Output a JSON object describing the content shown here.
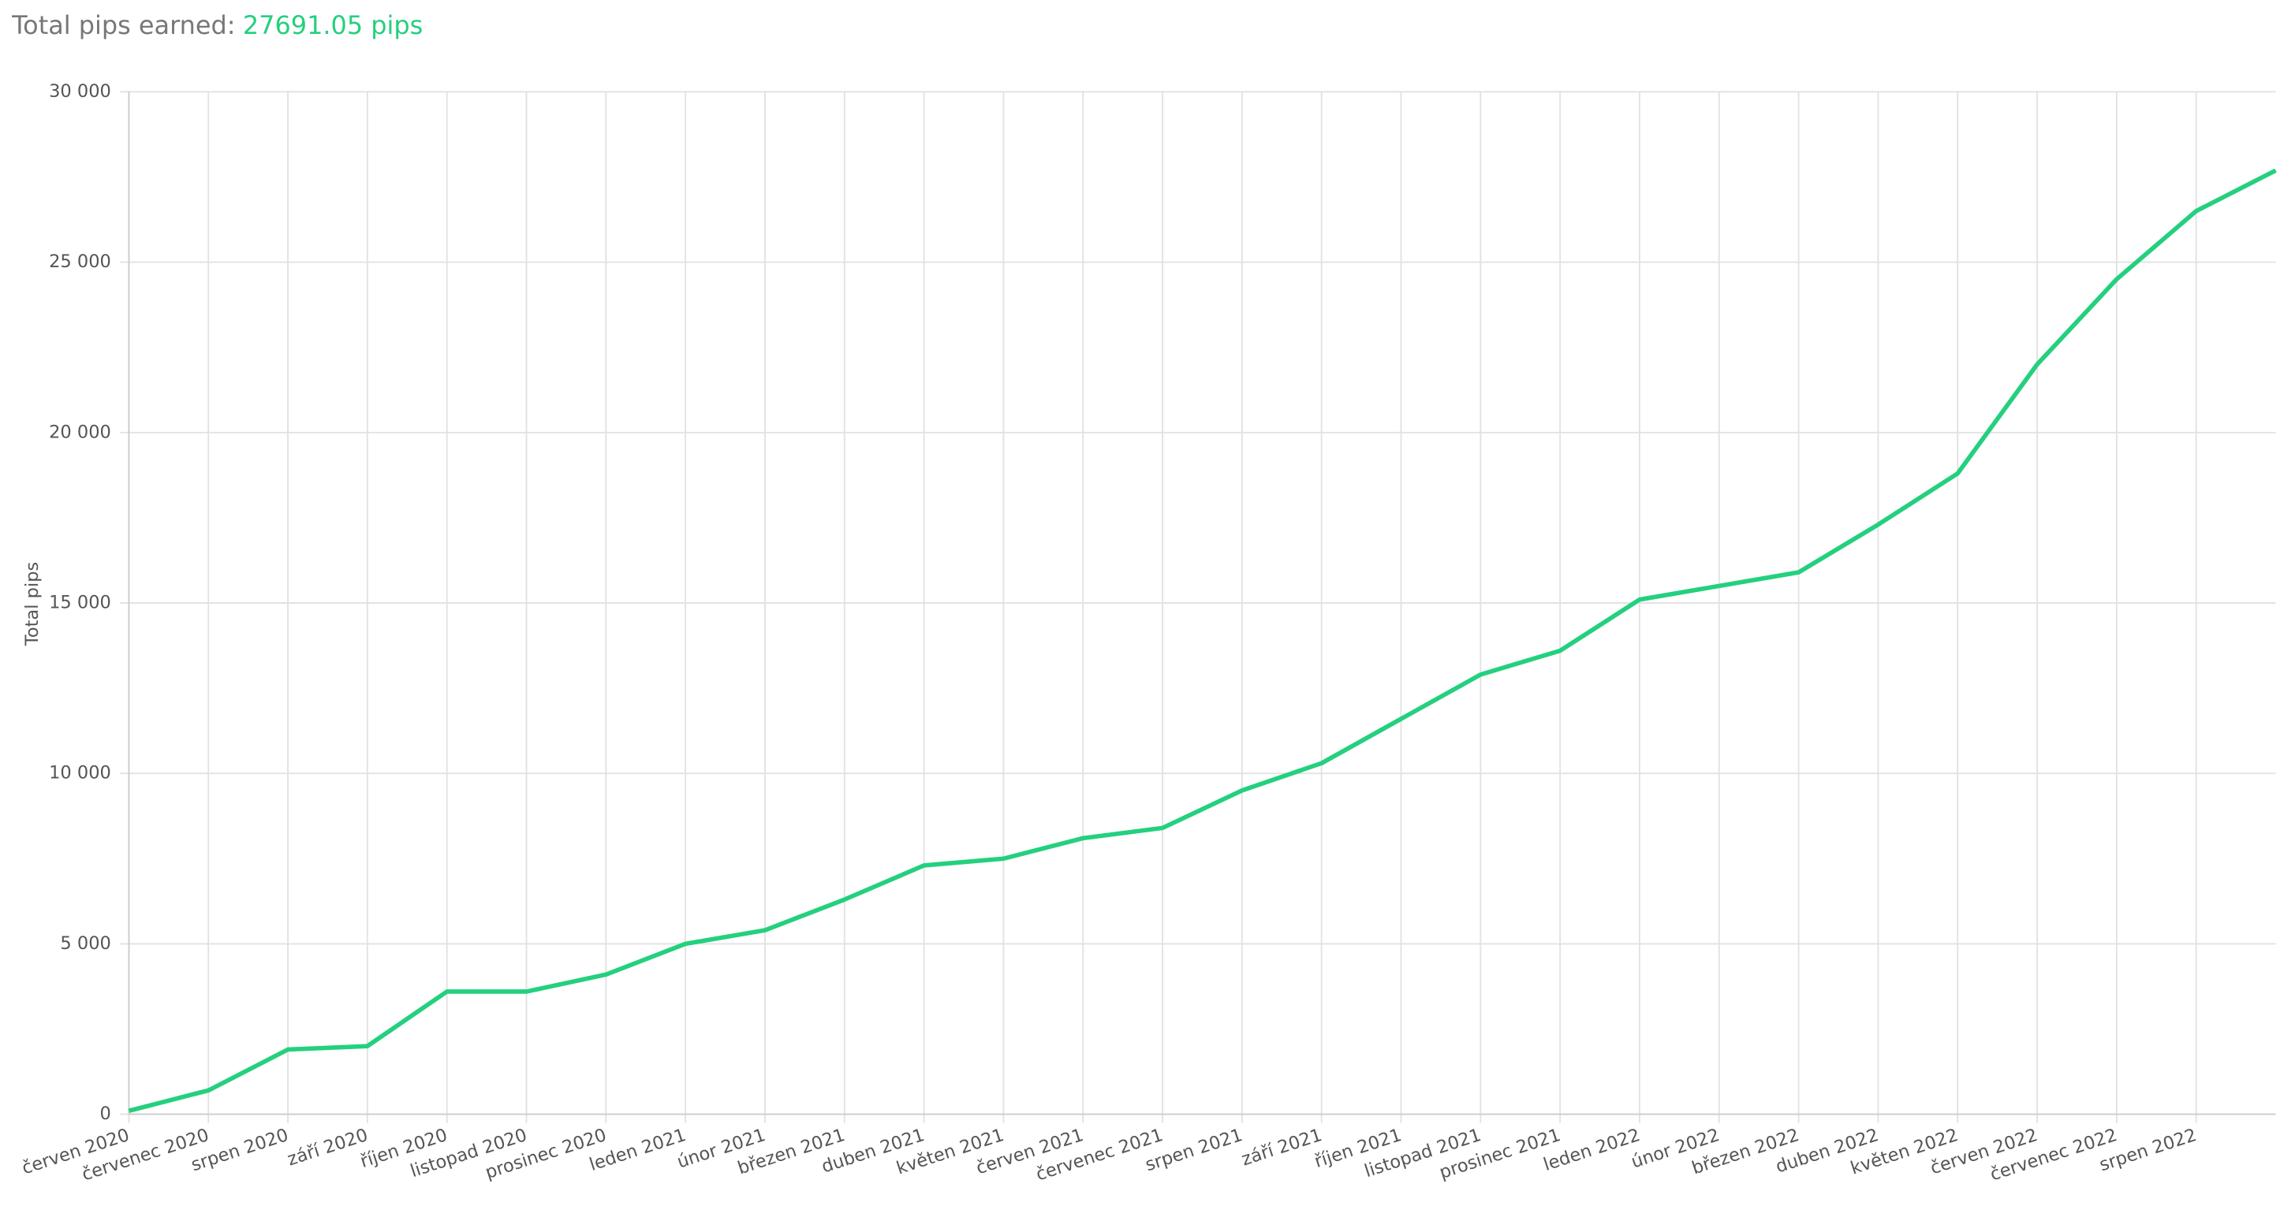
{
  "header": {
    "label": "Total pips earned:",
    "value": "27691.05 pips"
  },
  "chart_data": {
    "type": "line",
    "y_label": "Total pips",
    "categories": [
      "červen 2020",
      "červenec 2020",
      "srpen 2020",
      "září 2020",
      "říjen 2020",
      "listopad 2020",
      "prosinec 2020",
      "leden 2021",
      "únor 2021",
      "březen 2021",
      "duben 2021",
      "květen 2021",
      "červen 2021",
      "červenec 2021",
      "srpen 2021",
      "září 2021",
      "říjen 2021",
      "listopad 2021",
      "prosinec 2021",
      "leden 2022",
      "únor 2022",
      "březen 2022",
      "duben 2022",
      "květen 2022",
      "červen 2022",
      "červenec 2022",
      "srpen 2022",
      null
    ],
    "series": [
      {
        "name": "Total pips",
        "color": "#24d07e",
        "values": [
          100,
          700,
          1900,
          2000,
          3600,
          3600,
          4100,
          5000,
          5400,
          6300,
          7300,
          7500,
          8100,
          8400,
          9500,
          10300,
          11600,
          12900,
          13600,
          15100,
          15500,
          15900,
          17300,
          18800,
          22000,
          24500,
          26500,
          27691.05
        ]
      }
    ],
    "ylim": [
      0,
      30000
    ],
    "yticks": [
      {
        "value": 0,
        "label": "0"
      },
      {
        "value": 5000,
        "label": "5 000"
      },
      {
        "value": 10000,
        "label": "10 000"
      },
      {
        "value": 15000,
        "label": "15 000"
      },
      {
        "value": 20000,
        "label": "20 000"
      },
      {
        "value": 25000,
        "label": "25 000"
      },
      {
        "value": 30000,
        "label": "30 000"
      }
    ],
    "grid": true
  }
}
